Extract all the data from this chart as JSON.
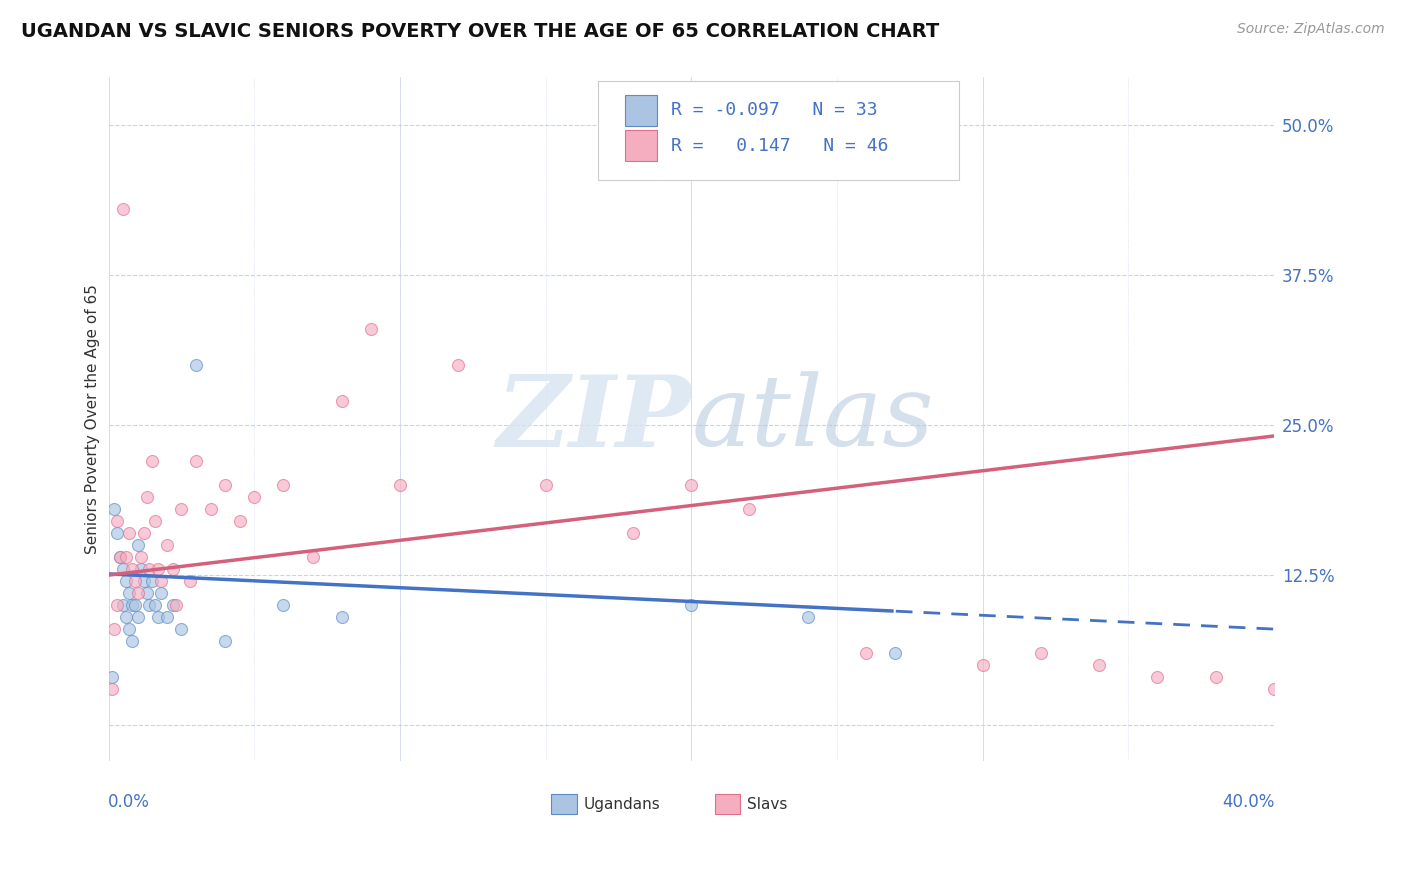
{
  "title": "UGANDAN VS SLAVIC SENIORS POVERTY OVER THE AGE OF 65 CORRELATION CHART",
  "source_text": "Source: ZipAtlas.com",
  "ylabel": "Seniors Poverty Over the Age of 65",
  "xlim": [
    0.0,
    0.4
  ],
  "ylim": [
    -0.03,
    0.54
  ],
  "ytick_positions": [
    0.0,
    0.125,
    0.25,
    0.375,
    0.5
  ],
  "ytick_labels": [
    "",
    "12.5%",
    "25.0%",
    "37.5%",
    "50.0%"
  ],
  "ugandan_color": "#aac4e2",
  "slav_color": "#f5adc0",
  "ugandan_edge_color": "#5b8cc8",
  "slav_edge_color": "#e0708e",
  "ugandan_line_color": "#4472c4",
  "slav_line_color": "#d4607c",
  "background_color": "#ffffff",
  "grid_color": "#c8d4e8",
  "legend_R_ugandan": "-0.097",
  "legend_N_ugandan": "33",
  "legend_R_slav": "0.147",
  "legend_N_slav": "46",
  "ugandan_x": [
    0.001,
    0.002,
    0.003,
    0.004,
    0.005,
    0.005,
    0.006,
    0.006,
    0.007,
    0.007,
    0.008,
    0.008,
    0.009,
    0.01,
    0.01,
    0.011,
    0.012,
    0.013,
    0.014,
    0.015,
    0.016,
    0.017,
    0.018,
    0.02,
    0.022,
    0.025,
    0.03,
    0.04,
    0.06,
    0.08,
    0.2,
    0.24,
    0.27
  ],
  "ugandan_y": [
    0.04,
    0.18,
    0.16,
    0.14,
    0.13,
    0.1,
    0.12,
    0.09,
    0.11,
    0.08,
    0.1,
    0.07,
    0.1,
    0.15,
    0.09,
    0.13,
    0.12,
    0.11,
    0.1,
    0.12,
    0.1,
    0.09,
    0.11,
    0.09,
    0.1,
    0.08,
    0.3,
    0.07,
    0.1,
    0.09,
    0.1,
    0.09,
    0.06
  ],
  "slav_x": [
    0.001,
    0.002,
    0.003,
    0.003,
    0.004,
    0.005,
    0.006,
    0.007,
    0.008,
    0.009,
    0.01,
    0.011,
    0.012,
    0.013,
    0.014,
    0.015,
    0.016,
    0.017,
    0.018,
    0.02,
    0.022,
    0.023,
    0.025,
    0.028,
    0.03,
    0.035,
    0.04,
    0.045,
    0.05,
    0.06,
    0.07,
    0.08,
    0.09,
    0.1,
    0.12,
    0.15,
    0.18,
    0.2,
    0.22,
    0.26,
    0.3,
    0.32,
    0.34,
    0.36,
    0.38,
    0.4
  ],
  "slav_y": [
    0.03,
    0.08,
    0.1,
    0.17,
    0.14,
    0.43,
    0.14,
    0.16,
    0.13,
    0.12,
    0.11,
    0.14,
    0.16,
    0.19,
    0.13,
    0.22,
    0.17,
    0.13,
    0.12,
    0.15,
    0.13,
    0.1,
    0.18,
    0.12,
    0.22,
    0.18,
    0.2,
    0.17,
    0.19,
    0.2,
    0.14,
    0.27,
    0.33,
    0.2,
    0.3,
    0.2,
    0.16,
    0.2,
    0.18,
    0.06,
    0.05,
    0.06,
    0.05,
    0.04,
    0.04,
    0.03
  ],
  "ugandan_solid_max": 0.27,
  "slav_line_start": 0.0,
  "slav_line_end": 0.4,
  "dot_size": 75,
  "dot_alpha": 0.65,
  "title_fontsize": 14,
  "label_fontsize": 11,
  "tick_fontsize": 12,
  "source_fontsize": 10
}
